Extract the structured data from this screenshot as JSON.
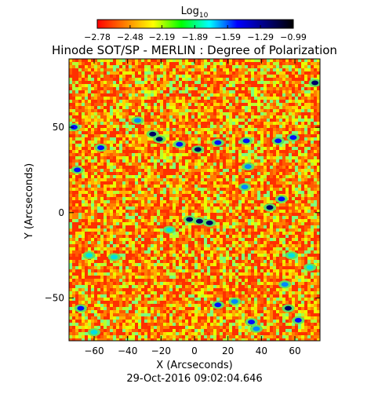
{
  "chart_data": {
    "type": "heatmap",
    "title": "Hinode SOT/SP - MERLIN : Degree of Polarization",
    "timestamp": "29-Oct-2016 09:02:04.646",
    "xlabel": "X (Arcseconds)",
    "ylabel": "Y (Arcseconds)",
    "xlim": [
      -75,
      75
    ],
    "ylim": [
      -75,
      90
    ],
    "xticks": [
      -60,
      -40,
      -20,
      0,
      20,
      40,
      60
    ],
    "xtick_labels": [
      "-60",
      "-40",
      "-20",
      "0",
      "20",
      "40",
      "60"
    ],
    "yticks": [
      -50,
      0,
      50
    ],
    "ytick_labels": [
      "-50",
      "0",
      "50"
    ],
    "colorbar": {
      "label_base": "Log",
      "label_sub": "10",
      "range": [
        -2.78,
        -0.99
      ],
      "tick_labels": [
        "-2.78",
        "-2.48",
        "-2.19",
        "-1.89",
        "-1.59",
        "-1.29",
        "-0.99"
      ],
      "colormap": [
        "#ff0000",
        "#ff8000",
        "#ffff00",
        "#00ff00",
        "#00ffff",
        "#0000ff",
        "#000080",
        "#000000"
      ]
    },
    "background_level": -2.55,
    "background_colors": [
      "#ff3000",
      "#ff5a00",
      "#ff8000",
      "#ffb000",
      "#ffd800",
      "#e8ff00",
      "#b4ff32",
      "#7dff7d"
    ],
    "patches": [
      {
        "x": -72,
        "y": 50,
        "level": -1.3
      },
      {
        "x": -70,
        "y": 25,
        "level": -1.5
      },
      {
        "x": -56,
        "y": 38,
        "level": -1.4
      },
      {
        "x": -34,
        "y": 54,
        "level": -1.6
      },
      {
        "x": -25,
        "y": 46,
        "level": -1.1
      },
      {
        "x": -21,
        "y": 43,
        "level": -1.2
      },
      {
        "x": -9,
        "y": 40,
        "level": -1.4
      },
      {
        "x": 2,
        "y": 37,
        "level": -1.2
      },
      {
        "x": 14,
        "y": 41,
        "level": -1.5
      },
      {
        "x": 31,
        "y": 42,
        "level": -1.3
      },
      {
        "x": 32,
        "y": 27,
        "level": -1.6
      },
      {
        "x": 30,
        "y": 15,
        "level": -1.7
      },
      {
        "x": 50,
        "y": 42,
        "level": -1.3
      },
      {
        "x": 59,
        "y": 44,
        "level": -1.5
      },
      {
        "x": 45,
        "y": 3,
        "level": -1.1
      },
      {
        "x": 52,
        "y": 8,
        "level": -1.3
      },
      {
        "x": 72,
        "y": 76,
        "level": -1.2
      },
      {
        "x": -3,
        "y": -4,
        "level": -1.2
      },
      {
        "x": 3,
        "y": -5,
        "level": -1.0
      },
      {
        "x": 9,
        "y": -6,
        "level": -1.1
      },
      {
        "x": -15,
        "y": -10,
        "level": -1.8
      },
      {
        "x": -63,
        "y": -25,
        "level": -1.8
      },
      {
        "x": -48,
        "y": -26,
        "level": -1.9
      },
      {
        "x": 54,
        "y": -42,
        "level": -1.6
      },
      {
        "x": 56,
        "y": -56,
        "level": -1.1
      },
      {
        "x": 62,
        "y": -63,
        "level": -1.5
      },
      {
        "x": 14,
        "y": -54,
        "level": -1.4
      },
      {
        "x": 24,
        "y": -52,
        "level": -1.7
      },
      {
        "x": 34,
        "y": -64,
        "level": -1.3
      },
      {
        "x": 37,
        "y": -68,
        "level": -1.6
      },
      {
        "x": -68,
        "y": -56,
        "level": -1.5
      },
      {
        "x": -60,
        "y": -70,
        "level": -1.8
      },
      {
        "x": 69,
        "y": -32,
        "level": -1.9
      },
      {
        "x": 58,
        "y": -25,
        "level": -1.8
      }
    ]
  }
}
